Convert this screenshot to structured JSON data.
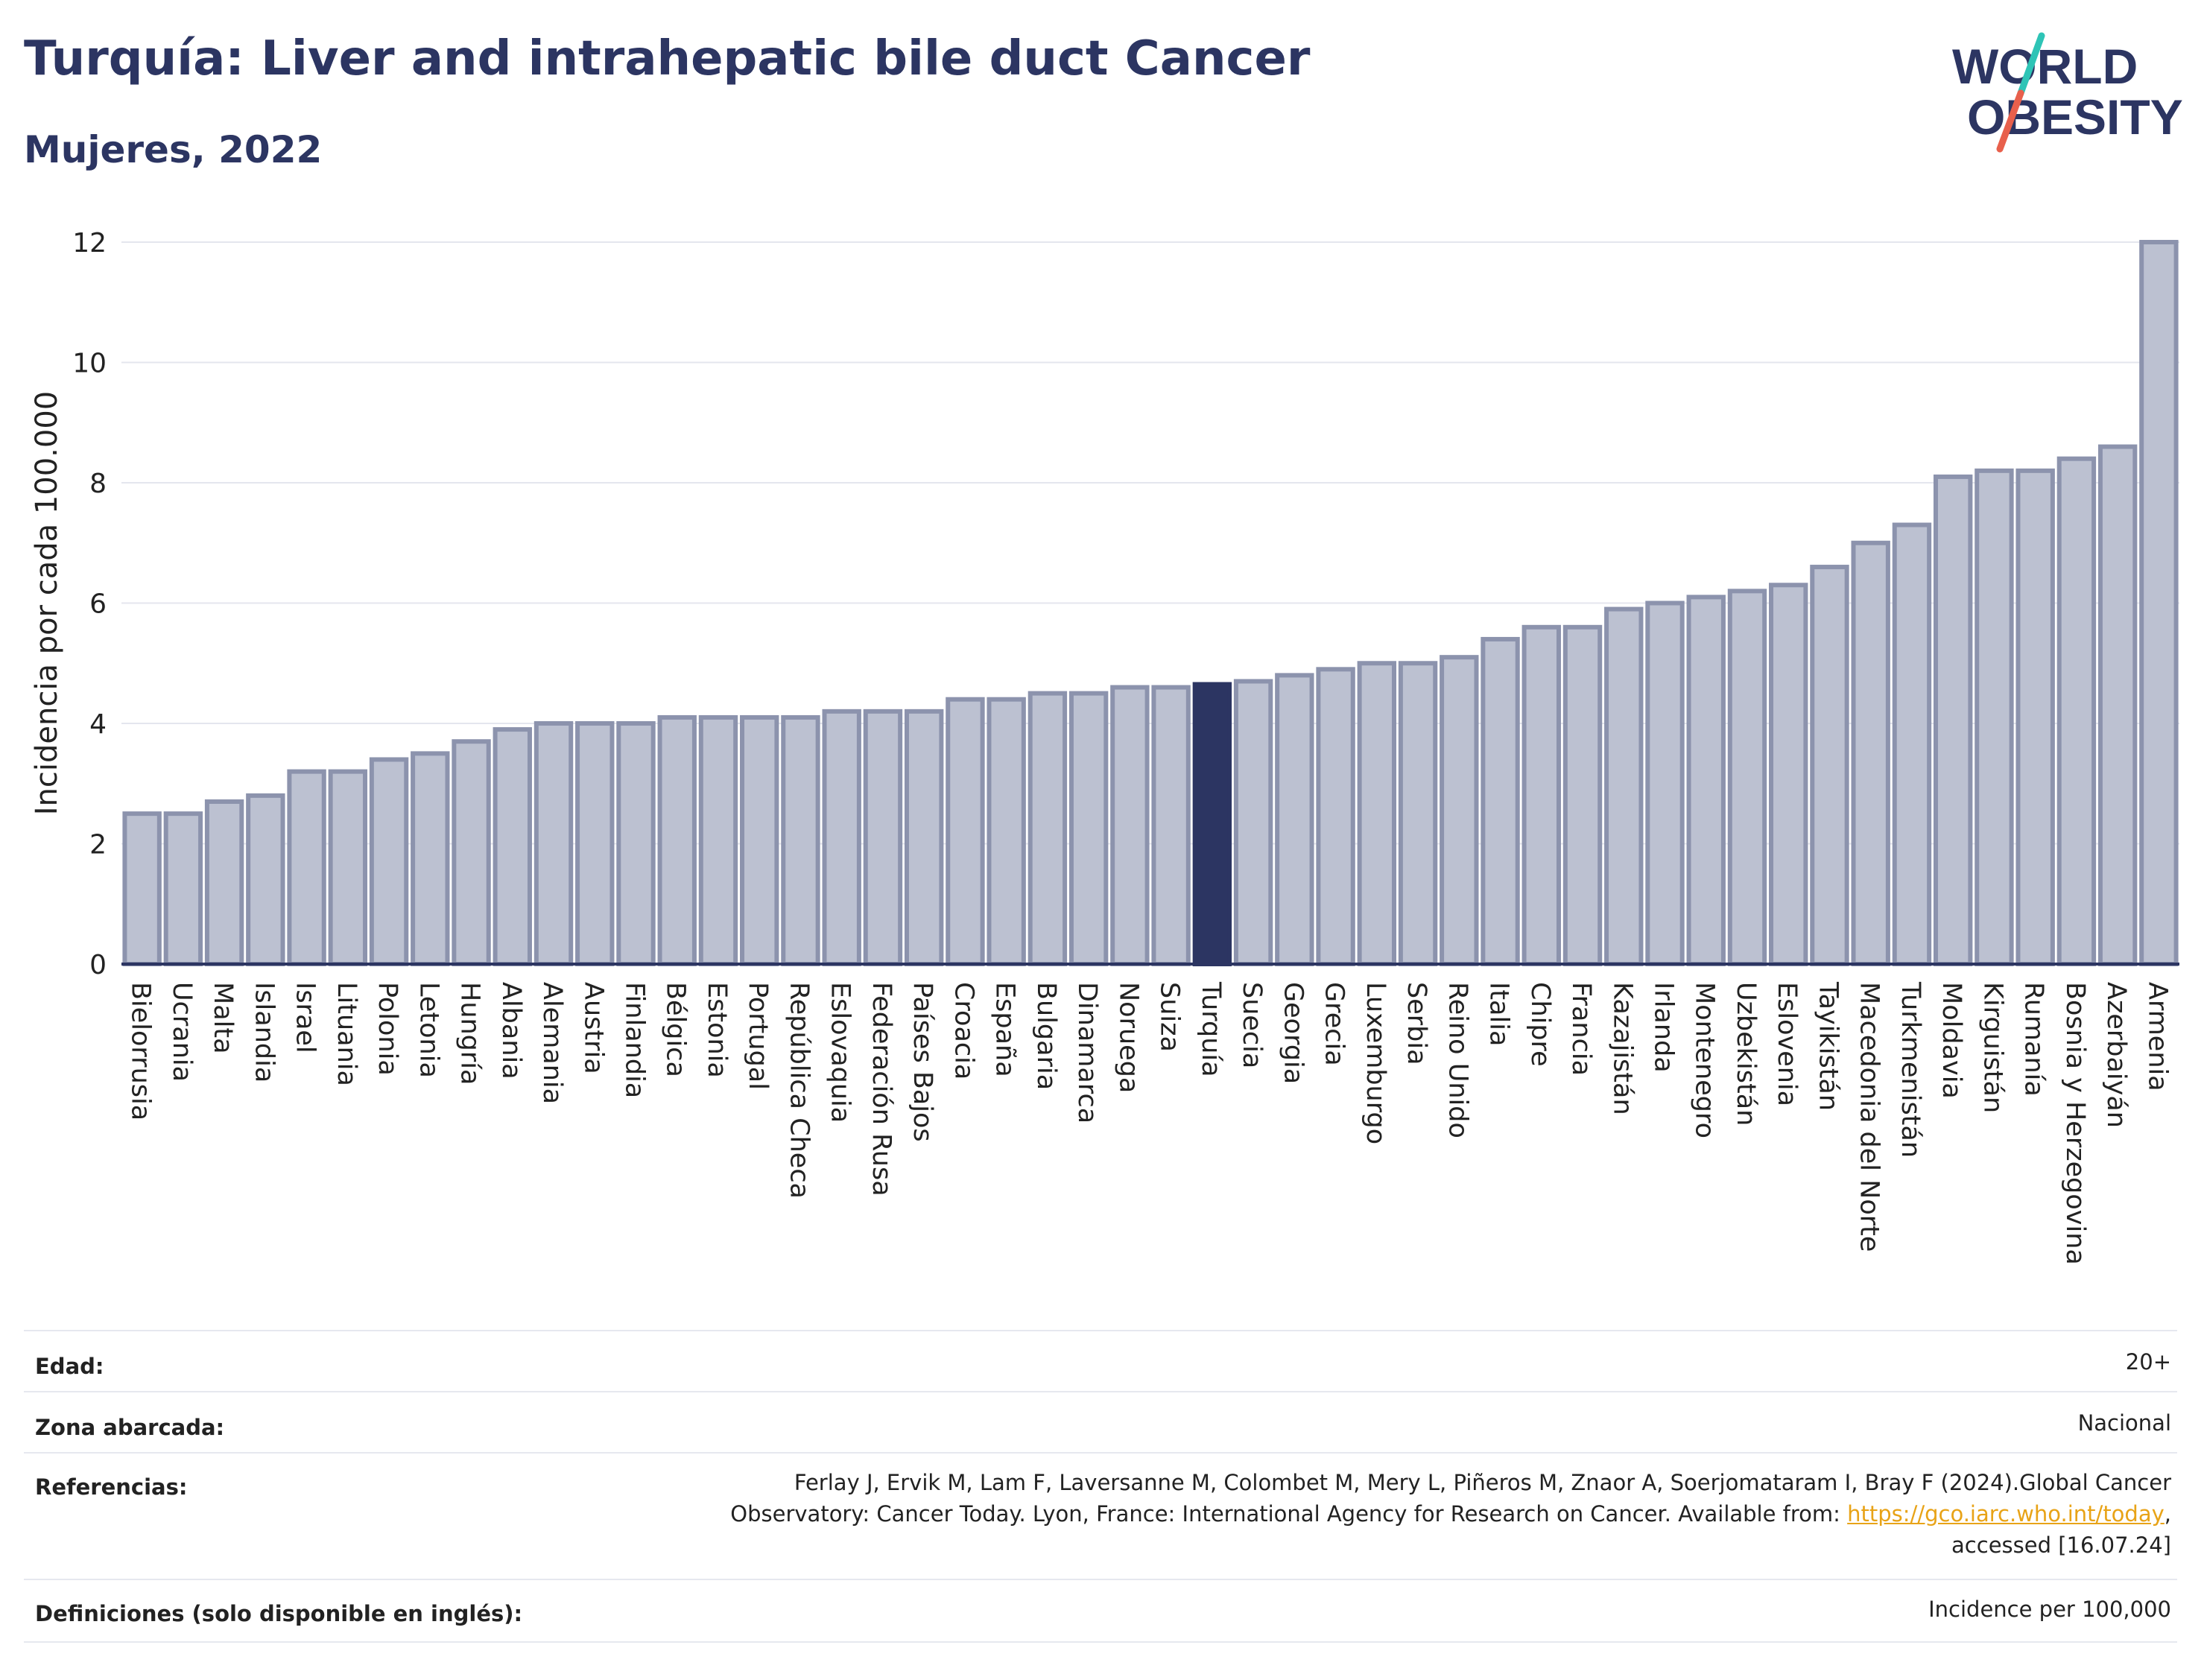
{
  "title": "Turquía: Liver and intrahepatic bile duct Cancer",
  "subtitle": "Mujeres, 2022",
  "logo": {
    "line1": "WORLD",
    "line2": "OBESITY",
    "accent_colors": [
      "#2ec4b6",
      "#e8604c"
    ]
  },
  "colors": {
    "bar": "#bcc1d1",
    "bar_edge": "#8c93ad",
    "highlight": "#2c3562",
    "grid": "#e4e6ee",
    "axis": "#2c3562"
  },
  "chart_data": {
    "type": "bar",
    "ylabel": "Incidencia por cada 100.000",
    "ylim": [
      0,
      12
    ],
    "yticks": [
      0,
      2,
      4,
      6,
      8,
      10,
      12
    ],
    "highlight": "Turquía",
    "categories": [
      "Bielorrusia",
      "Ucrania",
      "Malta",
      "Islandia",
      "Israel",
      "Lituania",
      "Polonia",
      "Letonia",
      "Hungría",
      "Albania",
      "Alemania",
      "Austria",
      "Finlandia",
      "Bélgica",
      "Estonia",
      "Portugal",
      "República Checa",
      "Eslovaquia",
      "Federación Rusa",
      "Países Bajos",
      "Croacia",
      "España",
      "Bulgaria",
      "Dinamarca",
      "Noruega",
      "Suiza",
      "Turquía",
      "Suecia",
      "Georgia",
      "Grecia",
      "Luxemburgo",
      "Serbia",
      "Reino Unido",
      "Italia",
      "Chipre",
      "Francia",
      "Kazajistán",
      "Irlanda",
      "Montenegro",
      "Uzbekistán",
      "Eslovenia",
      "Tayikistán",
      "Macedonia del Norte",
      "Turkmenistán",
      "Moldavia",
      "Kirguistán",
      "Rumanía",
      "Bosnia y Herzegovina",
      "Azerbaiyán",
      "Armenia"
    ],
    "values": [
      2.5,
      2.5,
      2.7,
      2.8,
      3.2,
      3.2,
      3.4,
      3.5,
      3.7,
      3.9,
      4.0,
      4.0,
      4.0,
      4.1,
      4.1,
      4.1,
      4.1,
      4.2,
      4.2,
      4.2,
      4.4,
      4.4,
      4.5,
      4.5,
      4.6,
      4.6,
      4.65,
      4.7,
      4.8,
      4.9,
      5.0,
      5.0,
      5.1,
      5.4,
      5.6,
      5.6,
      5.9,
      6.0,
      6.1,
      6.2,
      6.3,
      6.6,
      7.0,
      7.3,
      8.1,
      8.2,
      8.2,
      8.4,
      8.6,
      12.0
    ]
  },
  "meta": {
    "edad_label": "Edad:",
    "edad_value": "20+",
    "zona_label": "Zona abarcada:",
    "zona_value": "Nacional",
    "ref_label": "Referencias:",
    "ref_line1": "Ferlay J, Ervik M, Lam F, Laversanne M, Colombet M, Mery L, Piñeros M, Znaor A, Soerjomataram I, Bray F (2024).Global Cancer",
    "ref_line2_pre": "Observatory: Cancer Today. Lyon, France: International Agency for Research on Cancer. Available from: ",
    "ref_link": "https://gco.iarc.who.int/today",
    "ref_line2_post": ",",
    "ref_line3": "accessed [16.07.24]",
    "def_label": "Definiciones (solo disponible en inglés):",
    "def_value": "Incidence per 100,000"
  }
}
